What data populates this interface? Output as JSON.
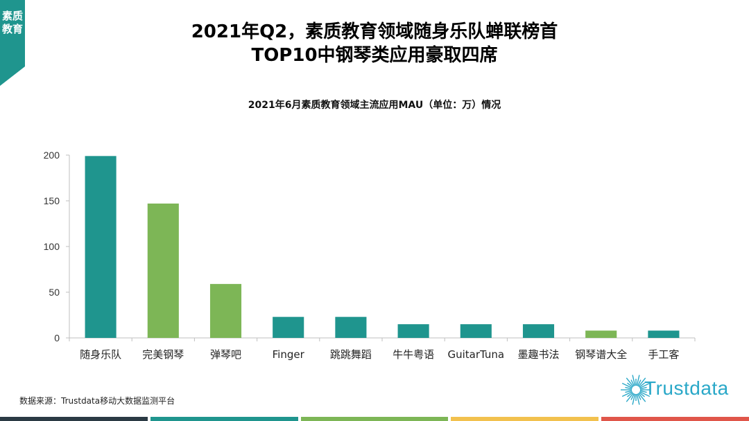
{
  "corner_tag": {
    "label": "素质教育",
    "color": "#1f958e"
  },
  "title_line1": "2021年Q2，素质教育领域随身乐队蝉联榜首",
  "title_line2": "TOP10中钢琴类应用豪取四席",
  "chart_data": {
    "type": "bar",
    "title": "2021年6月素质教育领域主流应用MAU（单位：万）情况",
    "categories": [
      "随身乐队",
      "完美钢琴",
      "弹琴吧",
      "Finger",
      "跳跳舞蹈",
      "牛牛粤语",
      "GuitarTuna",
      "墨趣书法",
      "钢琴谱大全",
      "手工客"
    ],
    "values": [
      199,
      147,
      59,
      23,
      23,
      15,
      15,
      15,
      8,
      8
    ],
    "bar_colors": [
      "#1f958e",
      "#7db656",
      "#7db656",
      "#1f958e",
      "#1f958e",
      "#1f958e",
      "#1f958e",
      "#1f958e",
      "#7db656",
      "#1f958e"
    ],
    "ylim": [
      0,
      200
    ],
    "yticks": [
      0,
      50,
      100,
      150,
      200
    ],
    "xlabel": "",
    "ylabel": "",
    "grid": false,
    "legend": "none"
  },
  "source": "数据来源：Trustdata移动大数据监测平台",
  "logo": {
    "text": "Trustdata",
    "color": "#2aa8c8"
  },
  "footer_colors": [
    "#2b3a44",
    "#1f958e",
    "#7db656",
    "#f2c14e",
    "#e0564a"
  ]
}
